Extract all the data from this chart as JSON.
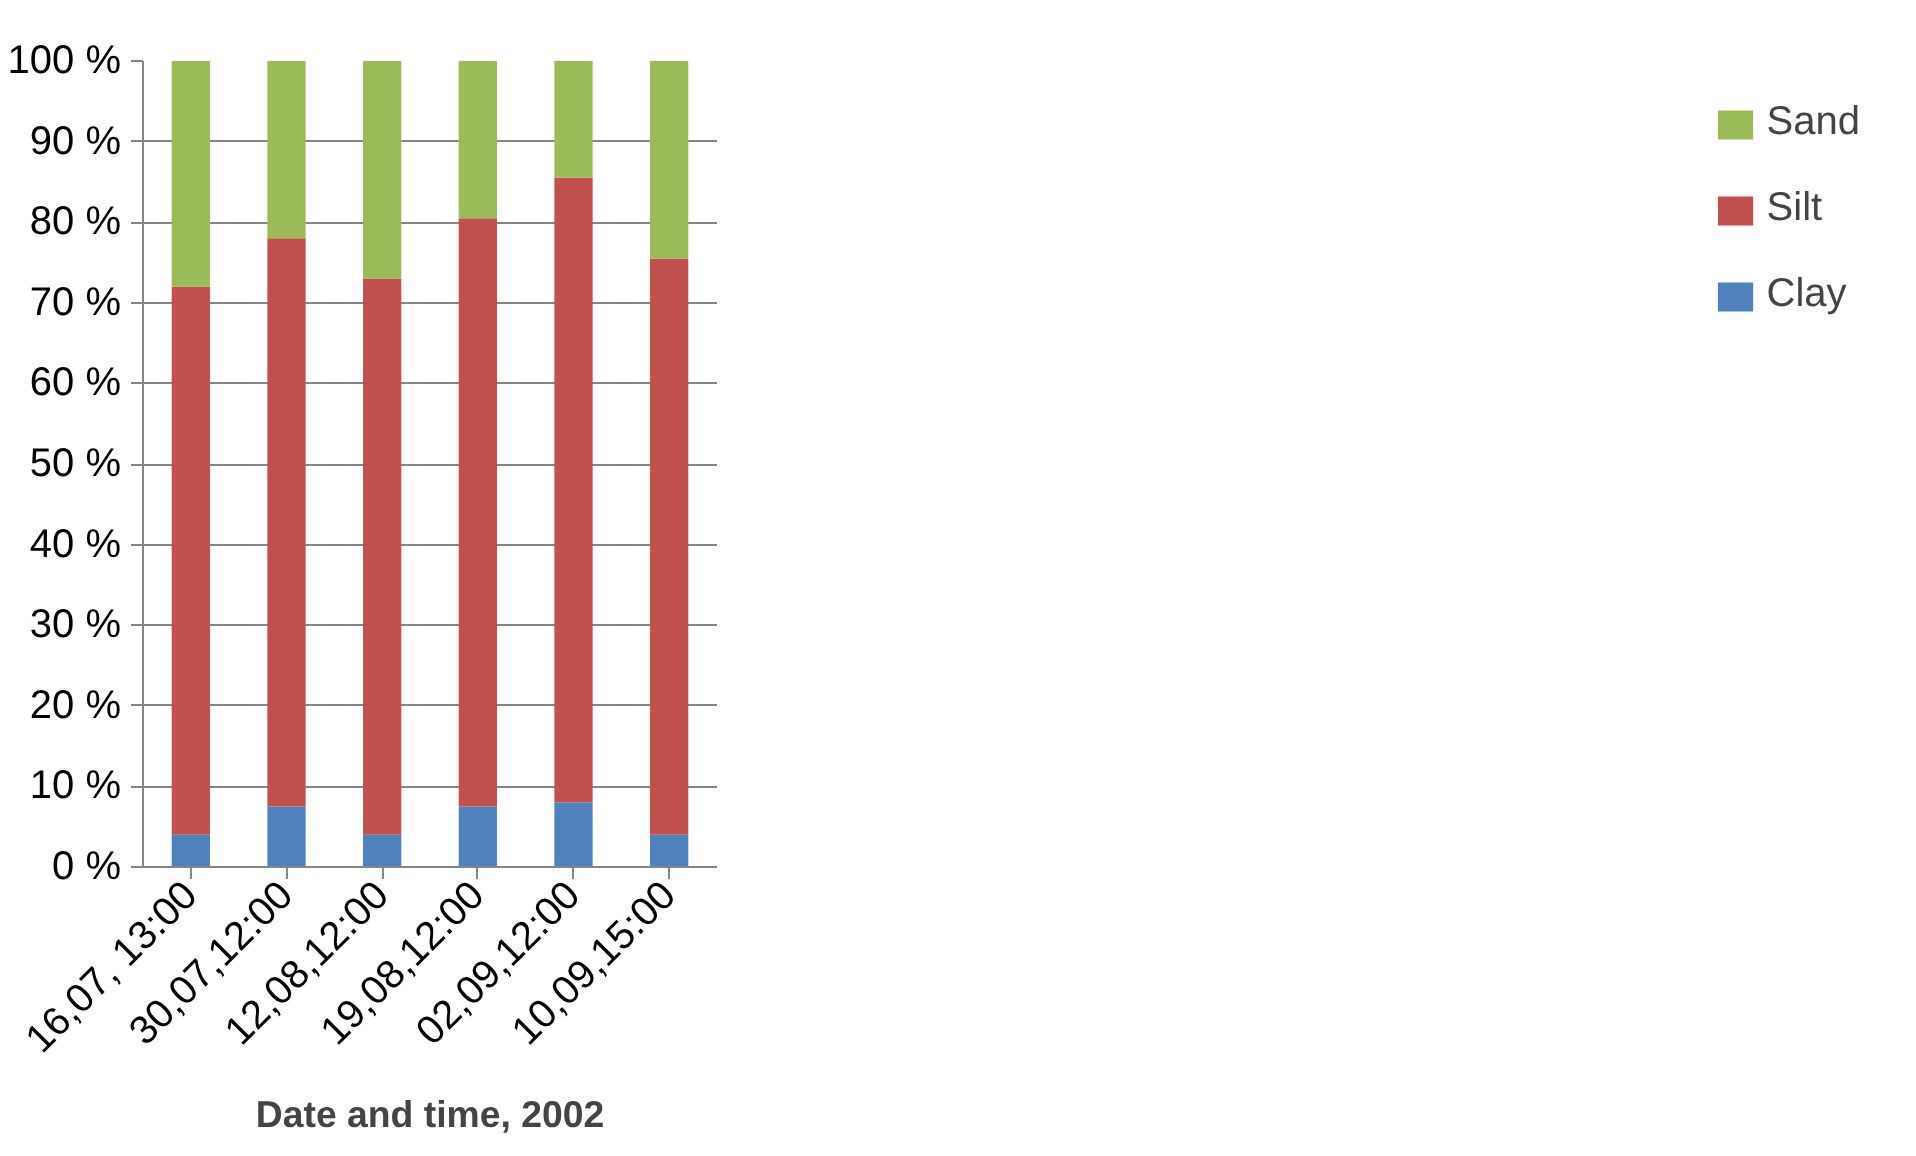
{
  "chart_data": {
    "type": "bar",
    "stacked": true,
    "xlabel": "Date and time, 2002",
    "categories": [
      "16,07, 13:00",
      "30,07,12:00",
      "12,08,12:00",
      "19,08,12:00",
      "02,09,12:00",
      "10,09,15:00"
    ],
    "series": [
      {
        "name": "Clay",
        "color": "#4f81bd",
        "values": [
          4,
          7.5,
          4,
          7.5,
          8,
          4
        ]
      },
      {
        "name": "Silt",
        "color": "#c0504d",
        "values": [
          68,
          70.5,
          69,
          73,
          77.5,
          71.5
        ]
      },
      {
        "name": "Sand",
        "color": "#9bbb59",
        "values": [
          28,
          22,
          27,
          19.5,
          14.5,
          24.5
        ]
      }
    ],
    "ylim": [
      0,
      100
    ],
    "yticks": [
      {
        "value": 0,
        "label": "0 %"
      },
      {
        "value": 10,
        "label": "10 %"
      },
      {
        "value": 20,
        "label": "20 %"
      },
      {
        "value": 30,
        "label": "30 %"
      },
      {
        "value": 40,
        "label": "40 %"
      },
      {
        "value": 50,
        "label": "50 %"
      },
      {
        "value": 60,
        "label": "60 %"
      },
      {
        "value": 70,
        "label": "70 %"
      },
      {
        "value": 80,
        "label": "80 %"
      },
      {
        "value": 90,
        "label": "90 %"
      },
      {
        "value": 100,
        "label": "100 %"
      }
    ],
    "grid": "y",
    "legend": "right"
  }
}
